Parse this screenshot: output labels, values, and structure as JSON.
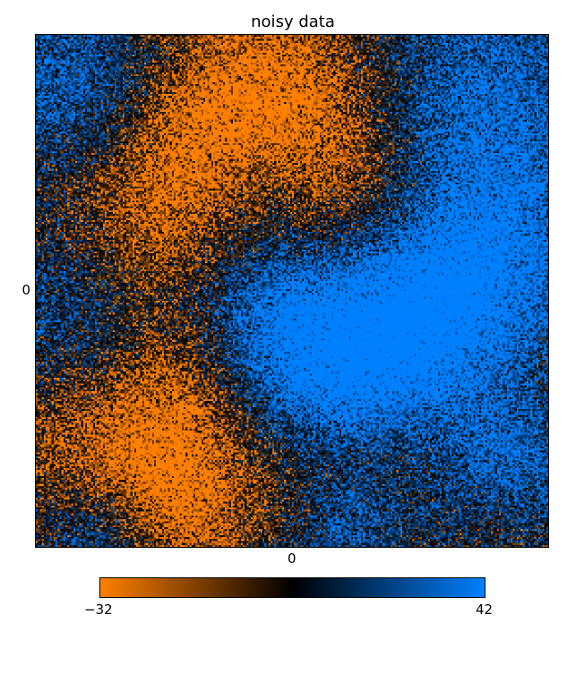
{
  "chart_data": {
    "type": "heatmap",
    "title": "noisy data",
    "x_ticks": [
      "0"
    ],
    "y_ticks": [
      "0"
    ],
    "colorbar": {
      "min_label": "−32",
      "max_label": "42",
      "vmin": -32,
      "vmax": 42,
      "colors": [
        "#ff7f00",
        "#000000",
        "#0080ff"
      ]
    },
    "field": {
      "grid_size": 260,
      "noise_amplitude": 0.85,
      "blobs": [
        {
          "cx": 0.48,
          "cy": 0.1,
          "r": 0.13,
          "value": -30
        },
        {
          "cx": 0.3,
          "cy": 0.2,
          "r": 0.12,
          "value": -26
        },
        {
          "cx": 0.58,
          "cy": 0.3,
          "r": 0.12,
          "value": -24
        },
        {
          "cx": 0.22,
          "cy": 0.42,
          "r": 0.13,
          "value": -26
        },
        {
          "cx": 0.15,
          "cy": 0.78,
          "r": 0.15,
          "value": -28
        },
        {
          "cx": 0.32,
          "cy": 0.7,
          "r": 0.11,
          "value": -24
        },
        {
          "cx": 0.3,
          "cy": 0.92,
          "r": 0.1,
          "value": -24
        },
        {
          "cx": 0.55,
          "cy": 0.85,
          "r": 0.1,
          "value": -18
        },
        {
          "cx": 0.75,
          "cy": 0.8,
          "r": 0.08,
          "value": -14
        },
        {
          "cx": 0.9,
          "cy": 0.92,
          "r": 0.06,
          "value": -12
        },
        {
          "cx": 0.08,
          "cy": 0.1,
          "r": 0.12,
          "value": 30
        },
        {
          "cx": 0.88,
          "cy": 0.12,
          "r": 0.16,
          "value": 34
        },
        {
          "cx": 0.9,
          "cy": 0.43,
          "r": 0.14,
          "value": 34
        },
        {
          "cx": 0.08,
          "cy": 0.55,
          "r": 0.12,
          "value": 30
        },
        {
          "cx": 0.45,
          "cy": 0.57,
          "r": 0.14,
          "value": 34
        },
        {
          "cx": 0.62,
          "cy": 0.68,
          "r": 0.16,
          "value": 38
        },
        {
          "cx": 0.75,
          "cy": 0.55,
          "r": 0.14,
          "value": 32
        },
        {
          "cx": 0.92,
          "cy": 0.85,
          "r": 0.1,
          "value": 32
        },
        {
          "cx": 0.12,
          "cy": 0.98,
          "r": 0.08,
          "value": 26
        },
        {
          "cx": 0.45,
          "cy": 0.28,
          "r": 0.08,
          "value": 14
        },
        {
          "cx": 0.6,
          "cy": 0.96,
          "r": 0.08,
          "value": 24
        }
      ]
    }
  }
}
